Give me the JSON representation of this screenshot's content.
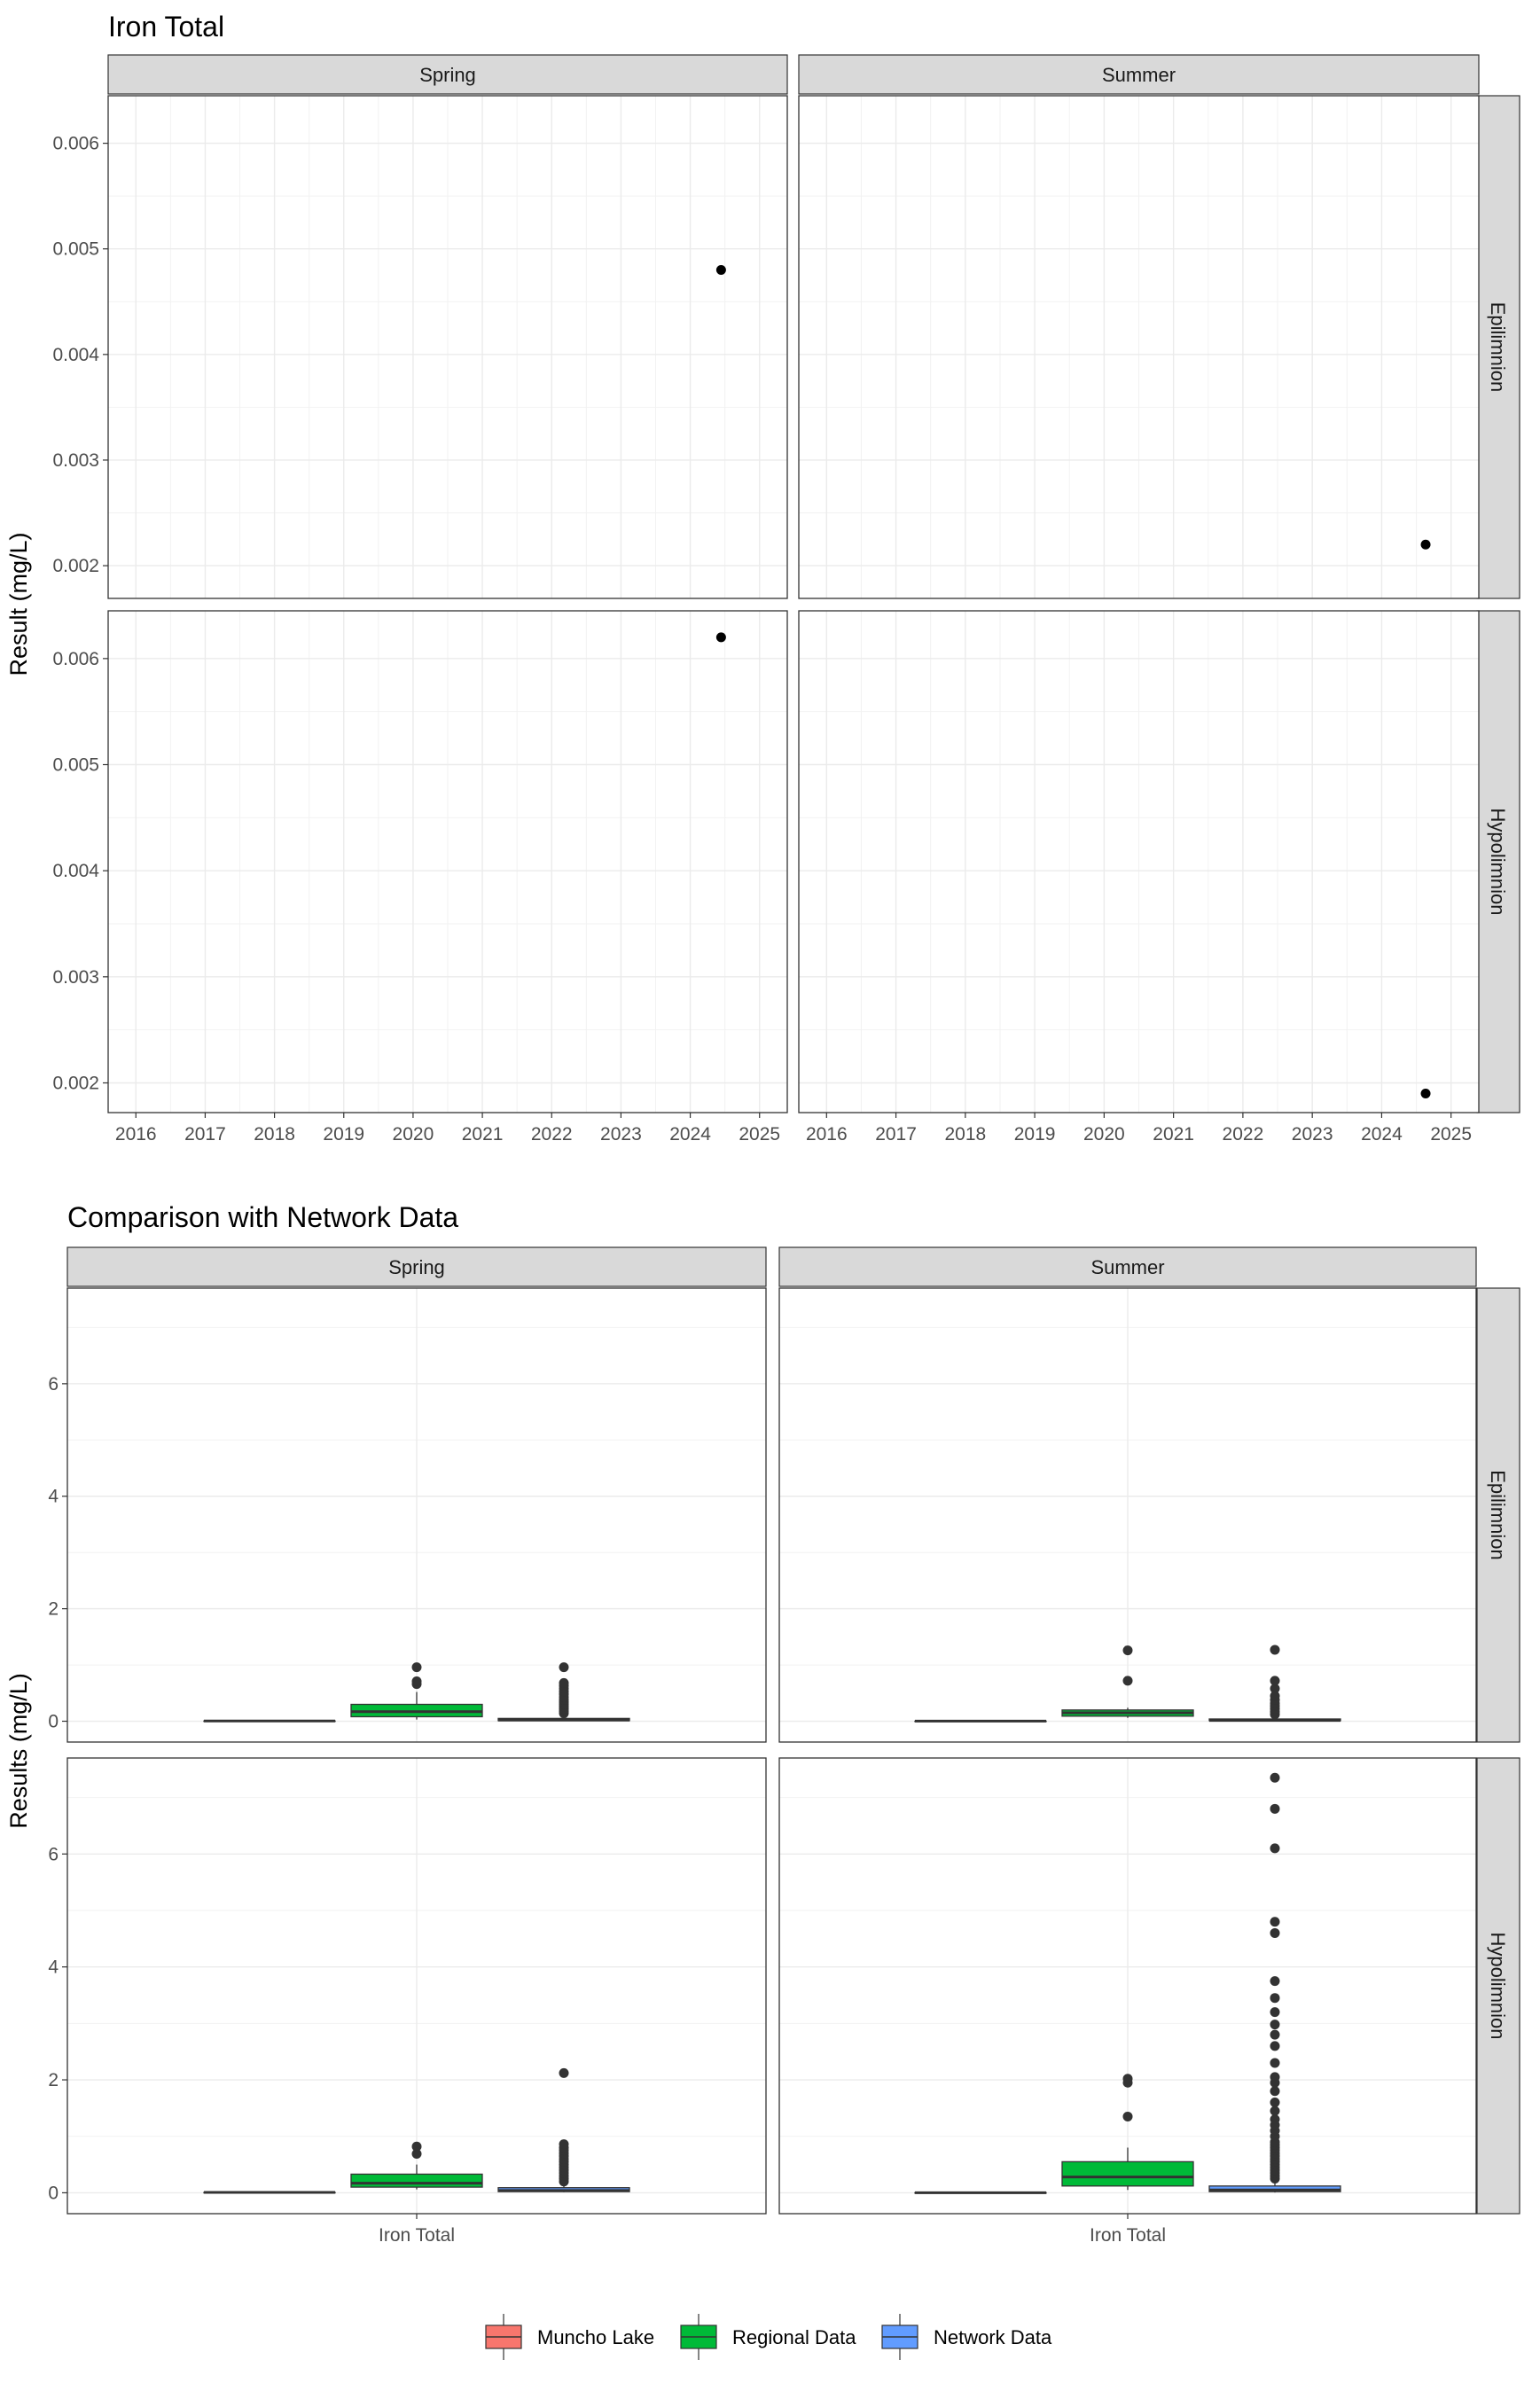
{
  "chart_data": [
    {
      "type": "scatter",
      "title": "Iron Total",
      "ylabel": "Result (mg/L)",
      "xlabel": "",
      "facet_cols": [
        "Spring",
        "Summer"
      ],
      "facet_rows": [
        "Epilimnion",
        "Hypolimnion"
      ],
      "xlim": [
        2015.6,
        2025.4
      ],
      "x_ticks": [
        2016,
        2017,
        2018,
        2019,
        2020,
        2021,
        2022,
        2023,
        2024,
        2025
      ],
      "x_tick_labels": [
        "2016",
        "2017",
        "2018",
        "2019",
        "2020",
        "2021",
        "2022",
        "2023",
        "2024",
        "2025"
      ],
      "rows": [
        {
          "ylim": [
            0.00169,
            0.00645
          ],
          "y_ticks": [
            0.002,
            0.003,
            0.004,
            0.005,
            0.006
          ],
          "y_tick_labels": [
            "0.002",
            "0.003",
            "0.004",
            "0.005",
            "0.006"
          ]
        },
        {
          "ylim": [
            0.00172,
            0.00645
          ],
          "y_ticks": [
            0.002,
            0.003,
            0.004,
            0.005,
            0.006
          ],
          "y_tick_labels": [
            "0.002",
            "0.003",
            "0.004",
            "0.005",
            "0.006"
          ]
        }
      ],
      "points": [
        {
          "season": "Spring",
          "layer": "Epilimnion",
          "x": "2024-06-12",
          "y": 0.0048
        },
        {
          "season": "Summer",
          "layer": "Epilimnion",
          "x": "2024-08-20",
          "y": 0.0022
        },
        {
          "season": "Spring",
          "layer": "Hypolimnion",
          "x": "2024-06-12",
          "y": 0.0062
        },
        {
          "season": "Summer",
          "layer": "Hypolimnion",
          "x": "2024-08-20",
          "y": 0.0019
        }
      ],
      "grid": true,
      "point_color": "#000000"
    },
    {
      "type": "box",
      "title": "Comparison with Network Data",
      "ylabel": "Results (mg/L)",
      "categories": [
        "Iron Total"
      ],
      "facet_cols": [
        "Spring",
        "Summer"
      ],
      "facet_rows": [
        "Epilimnion",
        "Hypolimnion"
      ],
      "ylim": [
        -0.37,
        7.7
      ],
      "y_ticks": [
        0,
        2,
        4,
        6
      ],
      "y_tick_labels": [
        "0",
        "2",
        "4",
        "6"
      ],
      "legend_position": "bottom",
      "series": [
        {
          "name": "Muncho Lake",
          "color": "#F8766D"
        },
        {
          "name": "Regional Data",
          "color": "#00BA38"
        },
        {
          "name": "Network Data",
          "color": "#619CFF"
        }
      ],
      "boxes": [
        {
          "season": "Spring",
          "layer": "Epilimnion",
          "group": "Muncho Lake",
          "min": 0.0048,
          "q1": 0.0048,
          "median": 0.0048,
          "q3": 0.0048,
          "max": 0.0048,
          "outliers": []
        },
        {
          "season": "Spring",
          "layer": "Epilimnion",
          "group": "Regional Data",
          "min": 0.03,
          "q1": 0.08,
          "median": 0.17,
          "q3": 0.3,
          "max": 0.52,
          "outliers": [
            0.66,
            0.71,
            0.96
          ]
        },
        {
          "season": "Spring",
          "layer": "Epilimnion",
          "group": "Network Data",
          "min": 0.005,
          "q1": 0.01,
          "median": 0.02,
          "q3": 0.05,
          "max": 0.1,
          "outliers": [
            0.14,
            0.18,
            0.22,
            0.26,
            0.3,
            0.34,
            0.38,
            0.43,
            0.48,
            0.53,
            0.58,
            0.63,
            0.68,
            0.96
          ]
        },
        {
          "season": "Summer",
          "layer": "Epilimnion",
          "group": "Muncho Lake",
          "min": 0.0022,
          "q1": 0.0022,
          "median": 0.0022,
          "q3": 0.0022,
          "max": 0.0022,
          "outliers": []
        },
        {
          "season": "Summer",
          "layer": "Epilimnion",
          "group": "Regional Data",
          "min": 0.06,
          "q1": 0.09,
          "median": 0.15,
          "q3": 0.2,
          "max": 0.24,
          "outliers": [
            0.72,
            1.26
          ]
        },
        {
          "season": "Summer",
          "layer": "Epilimnion",
          "group": "Network Data",
          "min": 0.005,
          "q1": 0.01,
          "median": 0.015,
          "q3": 0.04,
          "max": 0.08,
          "outliers": [
            0.12,
            0.17,
            0.22,
            0.27,
            0.32,
            0.38,
            0.45,
            0.58,
            0.72,
            1.27
          ]
        },
        {
          "season": "Spring",
          "layer": "Hypolimnion",
          "group": "Muncho Lake",
          "min": 0.0062,
          "q1": 0.0062,
          "median": 0.0062,
          "q3": 0.0062,
          "max": 0.0062,
          "outliers": []
        },
        {
          "season": "Spring",
          "layer": "Hypolimnion",
          "group": "Regional Data",
          "min": 0.06,
          "q1": 0.1,
          "median": 0.17,
          "q3": 0.33,
          "max": 0.5,
          "outliers": [
            0.69,
            0.82
          ]
        },
        {
          "season": "Spring",
          "layer": "Hypolimnion",
          "group": "Network Data",
          "min": 0.01,
          "q1": 0.02,
          "median": 0.04,
          "q3": 0.09,
          "max": 0.16,
          "outliers": [
            0.2,
            0.25,
            0.3,
            0.35,
            0.4,
            0.45,
            0.5,
            0.55,
            0.6,
            0.65,
            0.7,
            0.75,
            0.8,
            0.86,
            2.12
          ]
        },
        {
          "season": "Summer",
          "layer": "Hypolimnion",
          "group": "Muncho Lake",
          "min": 0.0019,
          "q1": 0.0019,
          "median": 0.0019,
          "q3": 0.0019,
          "max": 0.0019,
          "outliers": []
        },
        {
          "season": "Summer",
          "layer": "Hypolimnion",
          "group": "Regional Data",
          "min": 0.05,
          "q1": 0.12,
          "median": 0.28,
          "q3": 0.55,
          "max": 0.8,
          "outliers": [
            1.35,
            1.95,
            2.02
          ]
        },
        {
          "season": "Summer",
          "layer": "Hypolimnion",
          "group": "Network Data",
          "min": 0.005,
          "q1": 0.02,
          "median": 0.05,
          "q3": 0.12,
          "max": 0.22,
          "outliers": [
            0.25,
            0.3,
            0.35,
            0.4,
            0.45,
            0.5,
            0.55,
            0.6,
            0.65,
            0.7,
            0.75,
            0.8,
            0.85,
            0.9,
            1.0,
            1.1,
            1.2,
            1.3,
            1.45,
            1.6,
            1.8,
            1.95,
            2.05,
            2.3,
            2.6,
            2.8,
            2.98,
            3.2,
            3.45,
            3.75,
            4.6,
            4.8,
            6.1,
            6.8,
            7.35
          ]
        }
      ],
      "grid": true
    }
  ]
}
